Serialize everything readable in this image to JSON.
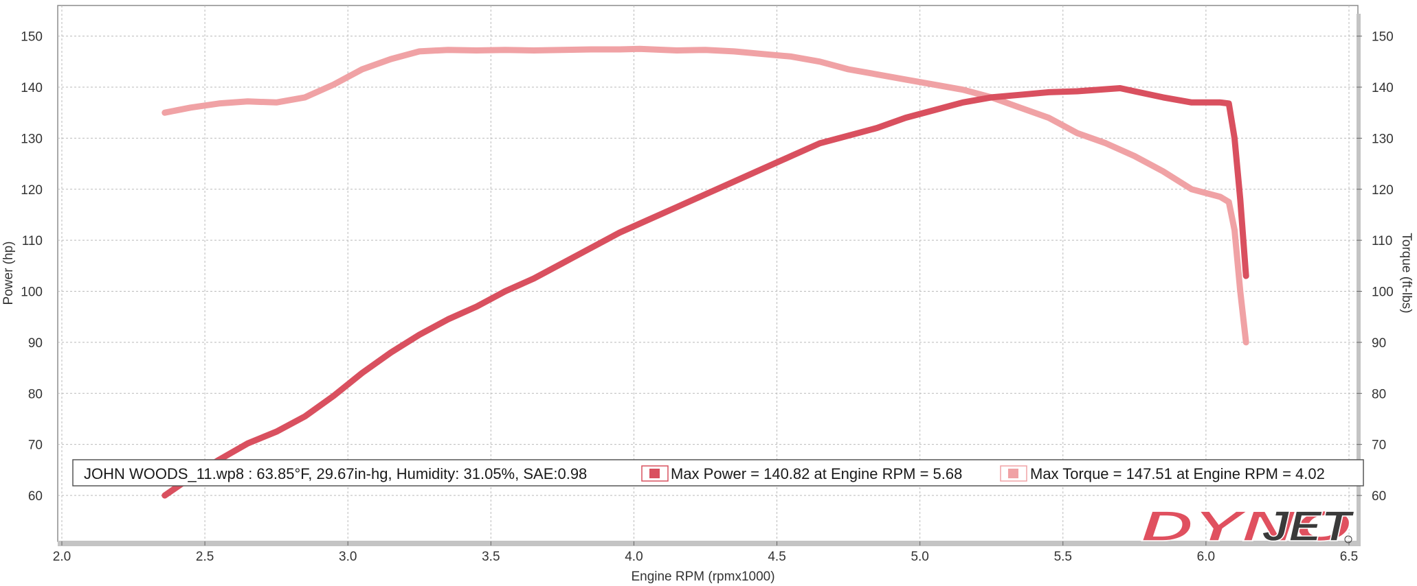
{
  "chart_data": {
    "type": "line",
    "xlabel": "Engine RPM (rpmx1000)",
    "ylabel_left": "Power (hp)",
    "ylabel_right": "Torque (ft-lbs)",
    "xlim": [
      2.0,
      6.5
    ],
    "ylim_left": [
      51,
      156
    ],
    "ylim_right": [
      51,
      156
    ],
    "x_ticks": [
      "2.0",
      "2.5",
      "3.0",
      "3.5",
      "4.0",
      "4.5",
      "5.0",
      "5.5",
      "6.0",
      "6.5"
    ],
    "y_ticks_left": [
      "60",
      "70",
      "80",
      "90",
      "100",
      "110",
      "120",
      "130",
      "140",
      "150"
    ],
    "y_ticks_right": [
      "60",
      "70",
      "80",
      "90",
      "100",
      "110",
      "120",
      "130",
      "140",
      "150"
    ],
    "grid": true,
    "legend": {
      "position": "bottom",
      "run_info": "JOHN WOODS_11.wp8 : 63.85°F, 29.67in-hg, Humidity: 31.05%, SAE:0.98",
      "entries": [
        "Max Power = 140.82 at Engine RPM = 5.68",
        "Max Torque = 147.51 at Engine RPM = 4.02"
      ]
    },
    "series": [
      {
        "name": "Power",
        "color": "#d9505f",
        "axis": "left",
        "x": [
          2.36,
          2.45,
          2.55,
          2.65,
          2.75,
          2.85,
          2.95,
          3.05,
          3.15,
          3.25,
          3.35,
          3.45,
          3.55,
          3.65,
          3.75,
          3.85,
          3.95,
          4.05,
          4.15,
          4.25,
          4.35,
          4.45,
          4.55,
          4.65,
          4.75,
          4.85,
          4.95,
          5.05,
          5.15,
          5.25,
          5.35,
          5.45,
          5.55,
          5.65,
          5.7,
          5.75,
          5.85,
          5.95,
          6.05,
          6.08,
          6.1,
          6.12,
          6.14
        ],
        "y": [
          60.0,
          63.5,
          67.0,
          70.2,
          72.5,
          75.5,
          79.5,
          84.0,
          88.0,
          91.5,
          94.5,
          97.0,
          100.0,
          102.5,
          105.5,
          108.5,
          111.5,
          114.0,
          116.5,
          119.0,
          121.5,
          124.0,
          126.5,
          129.0,
          130.5,
          132.0,
          134.0,
          135.5,
          137.0,
          138.0,
          138.5,
          139.0,
          139.2,
          139.6,
          139.8,
          139.2,
          138.0,
          137.0,
          137.0,
          136.8,
          130.0,
          118.0,
          103.0
        ]
      },
      {
        "name": "Torque",
        "color": "#f0a2a5",
        "axis": "right",
        "x": [
          2.36,
          2.45,
          2.55,
          2.65,
          2.75,
          2.85,
          2.95,
          3.05,
          3.15,
          3.25,
          3.35,
          3.45,
          3.55,
          3.65,
          3.75,
          3.85,
          3.95,
          4.02,
          4.15,
          4.25,
          4.35,
          4.45,
          4.55,
          4.65,
          4.75,
          4.85,
          4.95,
          5.05,
          5.15,
          5.25,
          5.35,
          5.45,
          5.55,
          5.65,
          5.75,
          5.85,
          5.95,
          6.05,
          6.08,
          6.1,
          6.12,
          6.14
        ],
        "y": [
          135.0,
          136.0,
          136.8,
          137.2,
          137.0,
          138.0,
          140.5,
          143.5,
          145.5,
          147.0,
          147.3,
          147.2,
          147.3,
          147.2,
          147.3,
          147.4,
          147.4,
          147.5,
          147.2,
          147.3,
          147.0,
          146.5,
          146.0,
          145.0,
          143.5,
          142.5,
          141.5,
          140.5,
          139.5,
          138.0,
          136.0,
          134.0,
          131.0,
          129.0,
          126.5,
          123.5,
          120.0,
          118.5,
          117.5,
          112.0,
          100.0,
          90.0
        ]
      }
    ]
  },
  "legend_colors": {
    "power_swatch": "#d9505f",
    "torque_swatch": "#f0a2a5"
  },
  "brand": {
    "logo_text": "DYNOJET",
    "logo_color": "#e0505f"
  }
}
